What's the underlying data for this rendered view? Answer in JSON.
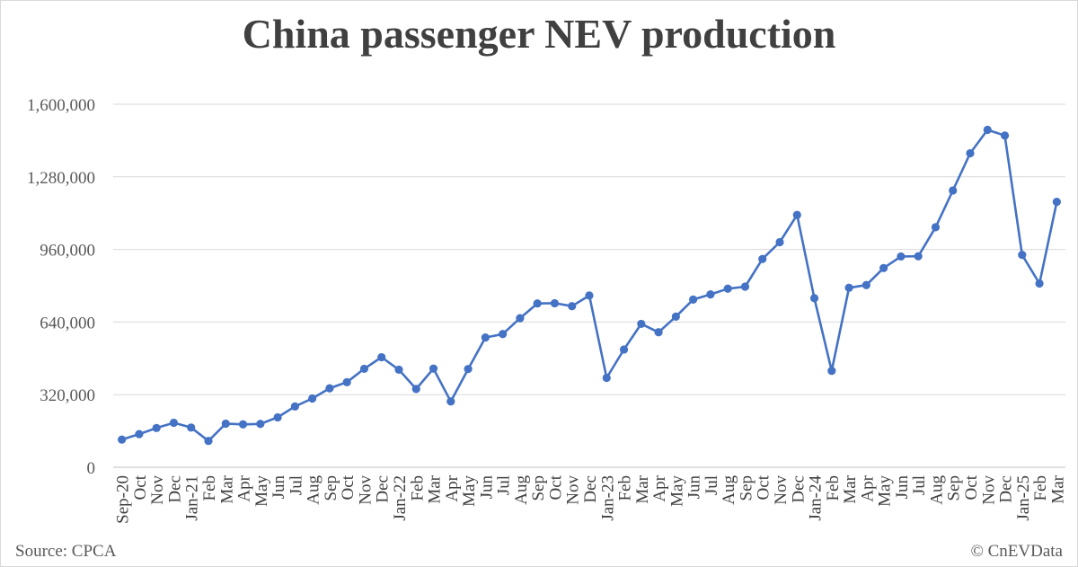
{
  "chart_data": {
    "type": "line",
    "title": "China passenger NEV production",
    "xlabel": "",
    "ylabel": "",
    "ylim": [
      0,
      1600000
    ],
    "yticks": [
      0,
      320000,
      640000,
      960000,
      1280000,
      1600000
    ],
    "ytick_labels": [
      "0",
      "320,000",
      "640,000",
      "960,000",
      "1,280,000",
      "1,600,000"
    ],
    "grid": true,
    "legend": "none",
    "color": "#4472c4",
    "categories": [
      "Sep-20",
      "Oct",
      "Nov",
      "Dec",
      "Jan-21",
      "Feb",
      "Mar",
      "Apr",
      "May",
      "Jun",
      "Jul",
      "Aug",
      "Sep",
      "Oct",
      "Nov",
      "Dec",
      "Jan-22",
      "Feb",
      "Mar",
      "Apr",
      "May",
      "Jun",
      "Jul",
      "Aug",
      "Sep",
      "Oct",
      "Nov",
      "Dec",
      "Jan-23",
      "Feb",
      "Mar",
      "Apr",
      "May",
      "Jun",
      "Jul",
      "Aug",
      "Sep",
      "Oct",
      "Nov",
      "Dec",
      "Jan-24",
      "Feb",
      "Mar",
      "Apr",
      "May",
      "Jun",
      "Jul",
      "Aug",
      "Sep",
      "Oct",
      "Nov",
      "Dec",
      "Jan-25",
      "Feb",
      "Mar"
    ],
    "series": [
      {
        "values": [
          122000,
          146000,
          173000,
          196000,
          175000,
          116000,
          192000,
          189000,
          191000,
          220000,
          268000,
          303000,
          348000,
          375000,
          434000,
          485000,
          430000,
          345000,
          435000,
          290000,
          433000,
          572000,
          587000,
          657000,
          722000,
          723000,
          710000,
          757000,
          394000,
          519000,
          632000,
          595000,
          664000,
          739000,
          762000,
          787000,
          796000,
          918000,
          992000,
          1112000,
          745000,
          425000,
          791000,
          803000,
          878000,
          929000,
          930000,
          1058000,
          1220000,
          1384000,
          1487000,
          1462000,
          936000,
          810000,
          1170000
        ]
      }
    ]
  },
  "footer": {
    "source": "Source: CPCA",
    "copyright": "© CnEVData"
  }
}
